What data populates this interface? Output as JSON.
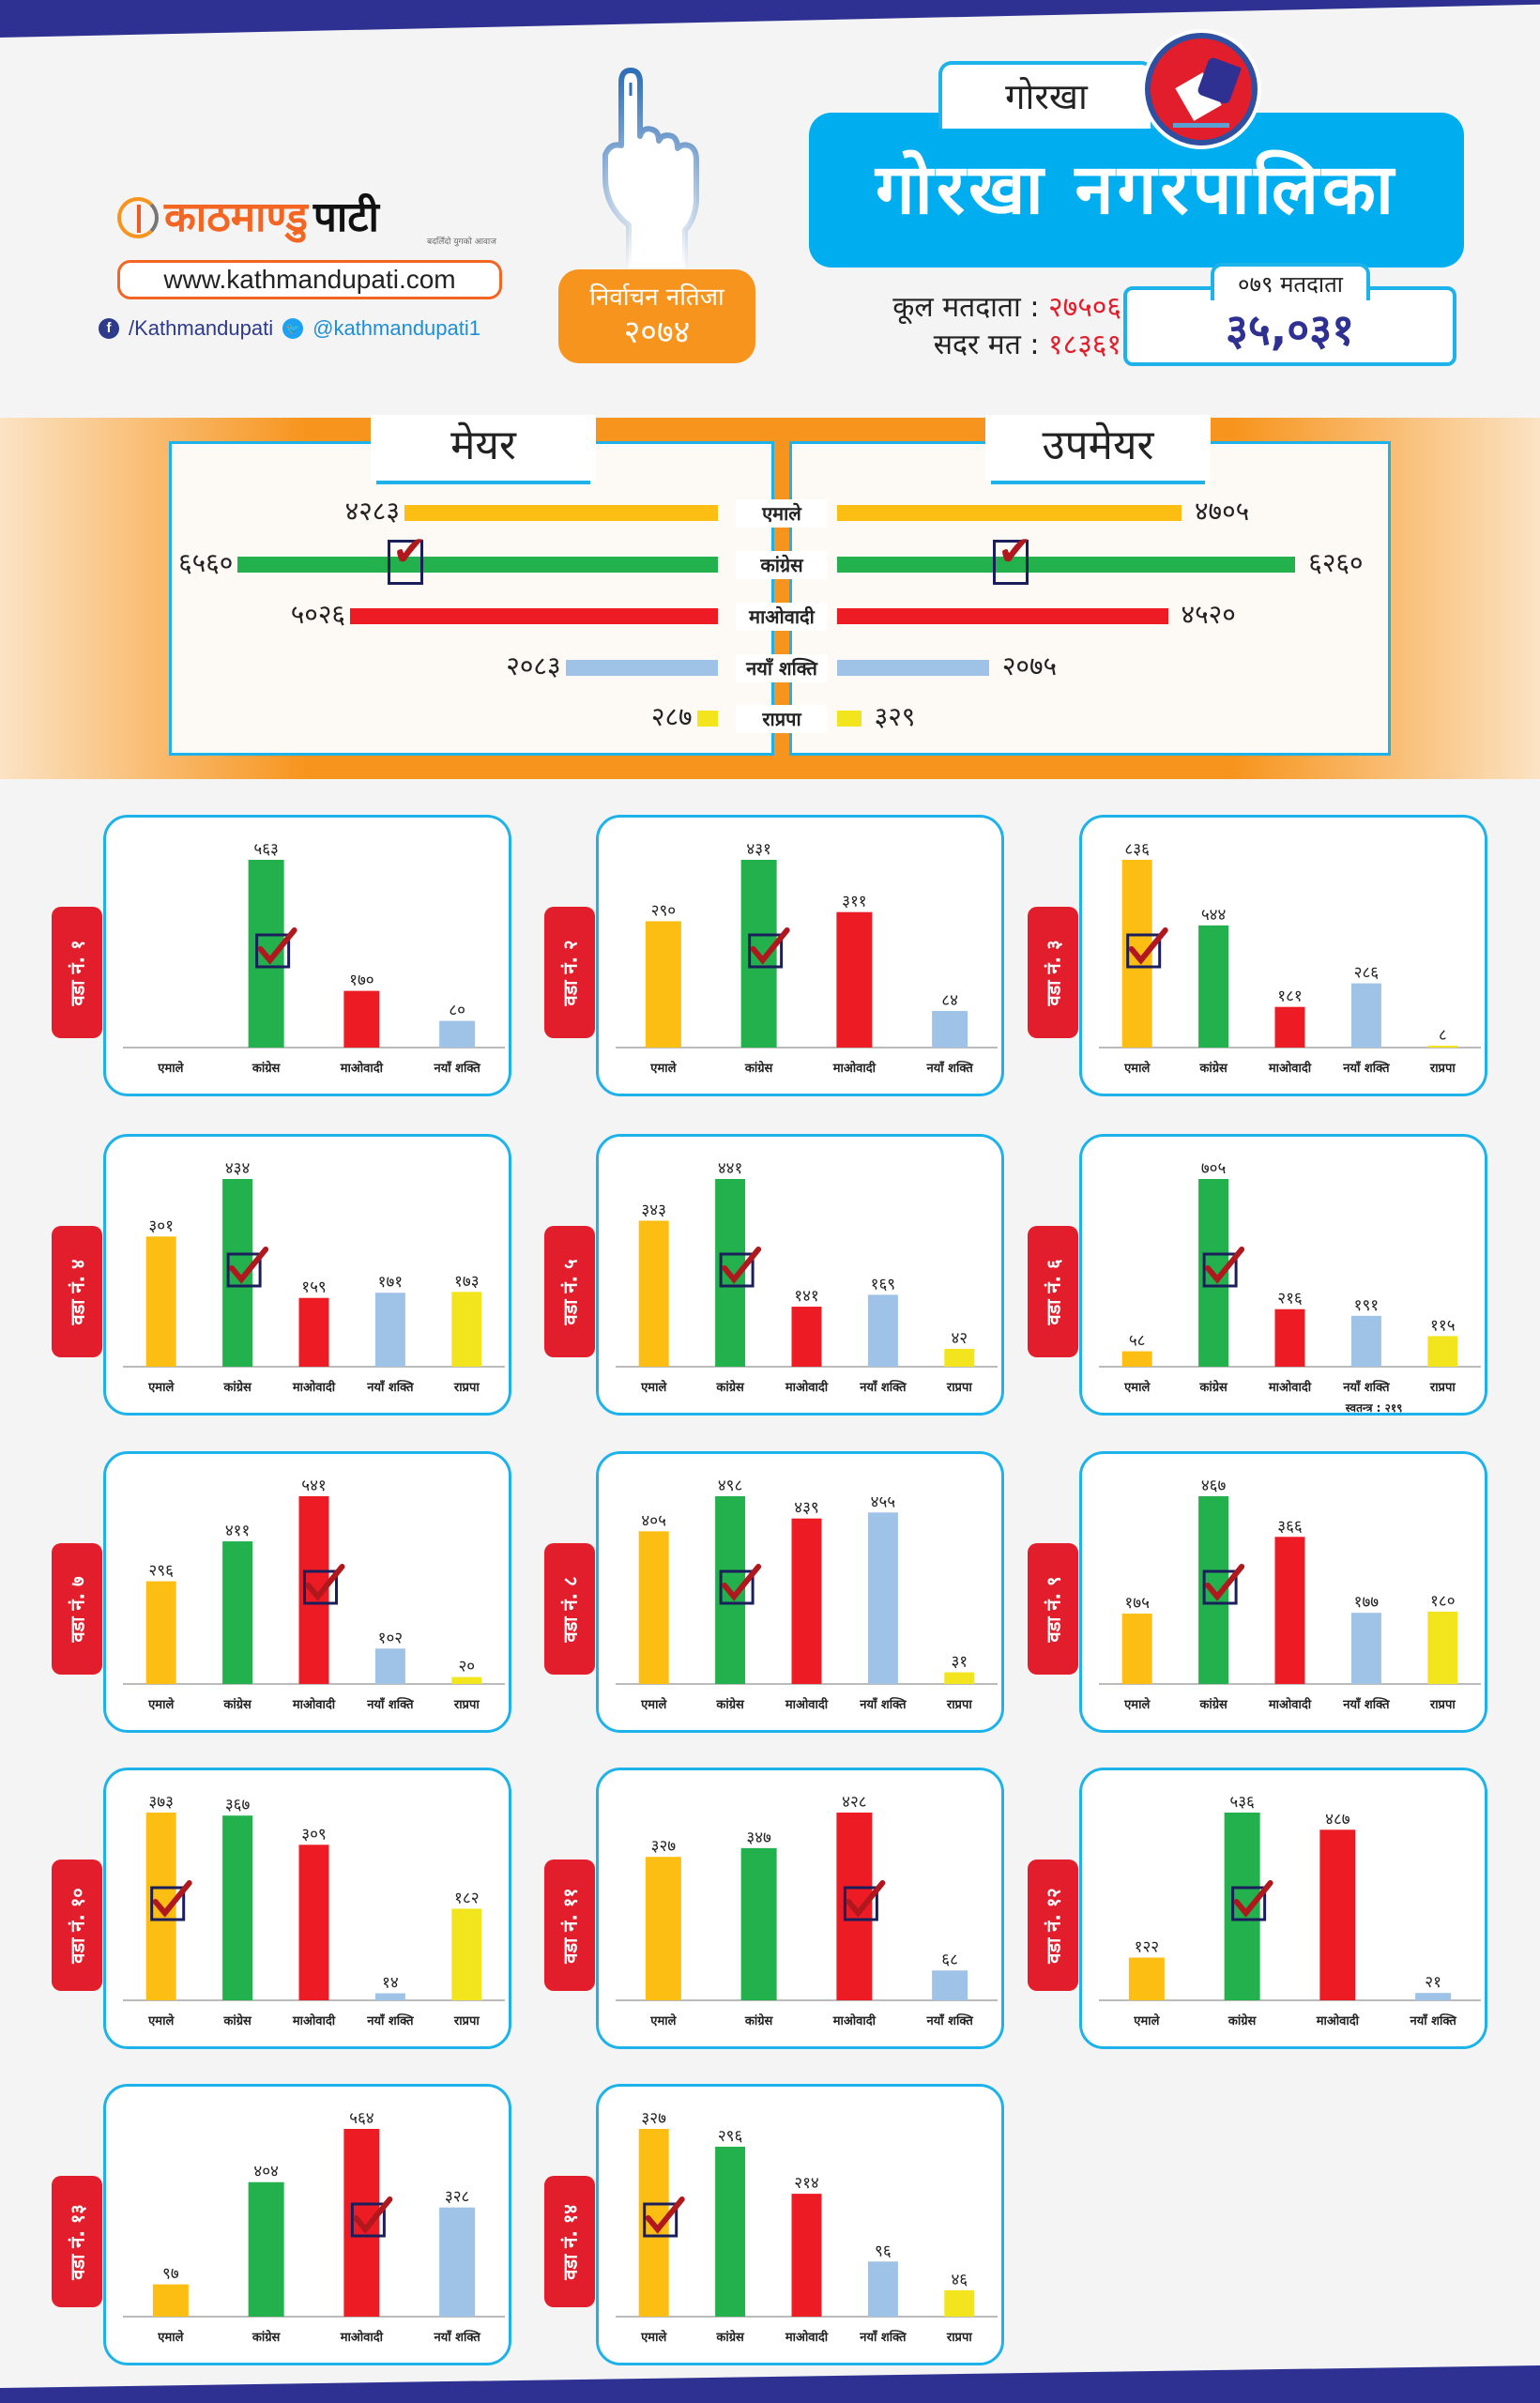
{
  "header": {
    "brand": {
      "part1": "काठमाण्डु",
      "part2": "पाटी",
      "tagline": "बदलिँदो युगको आवाज"
    },
    "website": "www.kathmandupati.com",
    "facebook": "/Kathmandupati",
    "twitter": "@kathmandupati1",
    "result_badge": {
      "line1": "निर्वाचन नतिजा",
      "line2": "२०७४"
    },
    "district": "गोरखा",
    "municipality": "गोरखा नगरपालिका",
    "total_voters_label": "कूल मतदाता :",
    "total_voters": "२७५०६",
    "valid_votes_label": "सदर मत :",
    "valid_votes": "१८३६१",
    "voters_079_label": "०७९ मतदाता",
    "voters_079": "३५,०३१"
  },
  "colors": {
    "एमाले": "#fdbe13",
    "कांग्रेस": "#22b14c",
    "माओवादी": "#ed1c24",
    "नयाँ शक्ति": "#9fc3e7",
    "राप्रपा": "#f2e51d",
    "accent_blue": "#1db3ea",
    "accent_orange": "#f7941d",
    "band_navy": "#2e3192"
  },
  "chart_data": [
    {
      "type": "bar",
      "orientation": "horizontal",
      "title": "मेयर",
      "categories": [
        "एमाले",
        "कांग्रेस",
        "माओवादी",
        "नयाँ शक्ति",
        "राप्रपा"
      ],
      "values": [
        4283,
        6560,
        5026,
        2083,
        287
      ],
      "labels": [
        "४२८३",
        "६५६०",
        "५०२६",
        "२०८३",
        "२८७"
      ],
      "winner": "कांग्रेस"
    },
    {
      "type": "bar",
      "orientation": "horizontal",
      "title": "उपमेयर",
      "categories": [
        "एमाले",
        "कांग्रेस",
        "माओवादी",
        "नयाँ शक्ति",
        "राप्रपा"
      ],
      "values": [
        4705,
        6260,
        4520,
        2075,
        329
      ],
      "labels": [
        "४७०५",
        "६२६०",
        "४५२०",
        "२०७५",
        "३२९"
      ],
      "winner": "कांग्रेस"
    },
    {
      "type": "bar",
      "title": "वडा नं. १",
      "categories": [
        "एमाले",
        "कांग्रेस",
        "माओवादी",
        "नयाँ शक्ति"
      ],
      "values": [
        0,
        563,
        170,
        80
      ],
      "labels": [
        "",
        "५६३",
        "१७०",
        "८०"
      ],
      "winner": "कांग्रेस"
    },
    {
      "type": "bar",
      "title": "वडा नं. २",
      "categories": [
        "एमाले",
        "कांग्रेस",
        "माओवादी",
        "नयाँ शक्ति"
      ],
      "values": [
        290,
        431,
        311,
        84
      ],
      "labels": [
        "२९०",
        "४३१",
        "३११",
        "८४"
      ],
      "winner": "कांग्रेस"
    },
    {
      "type": "bar",
      "title": "वडा नं. ३",
      "categories": [
        "एमाले",
        "कांग्रेस",
        "माओवादी",
        "नयाँ शक्ति",
        "राप्रपा"
      ],
      "values": [
        836,
        544,
        181,
        286,
        8
      ],
      "labels": [
        "८३६",
        "५४४",
        "१८१",
        "२८६",
        "८"
      ],
      "winner": "एमाले"
    },
    {
      "type": "bar",
      "title": "वडा नं. ४",
      "categories": [
        "एमाले",
        "कांग्रेस",
        "माओवादी",
        "नयाँ शक्ति",
        "राप्रपा"
      ],
      "values": [
        301,
        434,
        159,
        171,
        173
      ],
      "labels": [
        "३०१",
        "४३४",
        "१५९",
        "१७१",
        "१७३"
      ],
      "winner": "कांग्रेस"
    },
    {
      "type": "bar",
      "title": "वडा नं. ५",
      "categories": [
        "एमाले",
        "कांग्रेस",
        "माओवादी",
        "नयाँ शक्ति",
        "राप्रपा"
      ],
      "values": [
        343,
        441,
        141,
        169,
        42
      ],
      "labels": [
        "३४३",
        "४४१",
        "१४१",
        "१६९",
        "४२"
      ],
      "winner": "कांग्रेस"
    },
    {
      "type": "bar",
      "title": "वडा नं. ६",
      "categories": [
        "एमाले",
        "कांग्रेस",
        "माओवादी",
        "नयाँ शक्ति",
        "राप्रपा"
      ],
      "values": [
        58,
        705,
        216,
        191,
        115
      ],
      "labels": [
        "५८",
        "७०५",
        "२१६",
        "१९१",
        "११५"
      ],
      "winner": "कांग्रेस",
      "note": "स्वतन्त्र : २१९"
    },
    {
      "type": "bar",
      "title": "वडा नं. ७",
      "categories": [
        "एमाले",
        "कांग्रेस",
        "माओवादी",
        "नयाँ शक्ति",
        "राप्रपा"
      ],
      "values": [
        296,
        411,
        541,
        102,
        20
      ],
      "labels": [
        "२९६",
        "४११",
        "५४१",
        "१०२",
        "२०"
      ],
      "winner": "माओवादी"
    },
    {
      "type": "bar",
      "title": "वडा नं. ८",
      "categories": [
        "एमाले",
        "कांग्रेस",
        "माओवादी",
        "नयाँ शक्ति",
        "राप्रपा"
      ],
      "values": [
        405,
        498,
        439,
        455,
        31
      ],
      "labels": [
        "४०५",
        "४९८",
        "४३९",
        "४५५",
        "३१"
      ],
      "winner": "कांग्रेस"
    },
    {
      "type": "bar",
      "title": "वडा नं. ९",
      "categories": [
        "एमाले",
        "कांग्रेस",
        "माओवादी",
        "नयाँ शक्ति",
        "राप्रपा"
      ],
      "values": [
        175,
        467,
        366,
        177,
        180
      ],
      "labels": [
        "१७५",
        "४६७",
        "३६६",
        "१७७",
        "१८०"
      ],
      "winner": "कांग्रेस"
    },
    {
      "type": "bar",
      "title": "वडा नं. १०",
      "categories": [
        "एमाले",
        "कांग्रेस",
        "माओवादी",
        "नयाँ शक्ति",
        "राप्रपा"
      ],
      "values": [
        373,
        367,
        309,
        14,
        182
      ],
      "labels": [
        "३७३",
        "३६७",
        "३०९",
        "१४",
        "१८२"
      ],
      "winner": "एमाले"
    },
    {
      "type": "bar",
      "title": "वडा नं. ११",
      "categories": [
        "एमाले",
        "कांग्रेस",
        "माओवादी",
        "नयाँ शक्ति"
      ],
      "values": [
        327,
        347,
        428,
        68
      ],
      "labels": [
        "३२७",
        "३४७",
        "४२८",
        "६८"
      ],
      "winner": "माओवादी"
    },
    {
      "type": "bar",
      "title": "वडा नं. १२",
      "categories": [
        "एमाले",
        "कांग्रेस",
        "माओवादी",
        "नयाँ शक्ति"
      ],
      "values": [
        122,
        536,
        487,
        21
      ],
      "labels": [
        "१२२",
        "५३६",
        "४८७",
        "२१"
      ],
      "winner": "कांग्रेस"
    },
    {
      "type": "bar",
      "title": "वडा नं. १३",
      "categories": [
        "एमाले",
        "कांग्रेस",
        "माओवादी",
        "नयाँ शक्ति"
      ],
      "values": [
        97,
        404,
        564,
        328
      ],
      "labels": [
        "९७",
        "४०४",
        "५६४",
        "३२८"
      ],
      "winner": "माओवादी"
    },
    {
      "type": "bar",
      "title": "वडा नं. १४",
      "categories": [
        "एमाले",
        "कांग्रेस",
        "माओवादी",
        "नयाँ शक्ति",
        "राप्रपा"
      ],
      "values": [
        327,
        296,
        214,
        96,
        46
      ],
      "labels": [
        "३२७",
        "२९६",
        "२१४",
        "९६",
        "४६"
      ],
      "winner": "एमाले"
    }
  ]
}
